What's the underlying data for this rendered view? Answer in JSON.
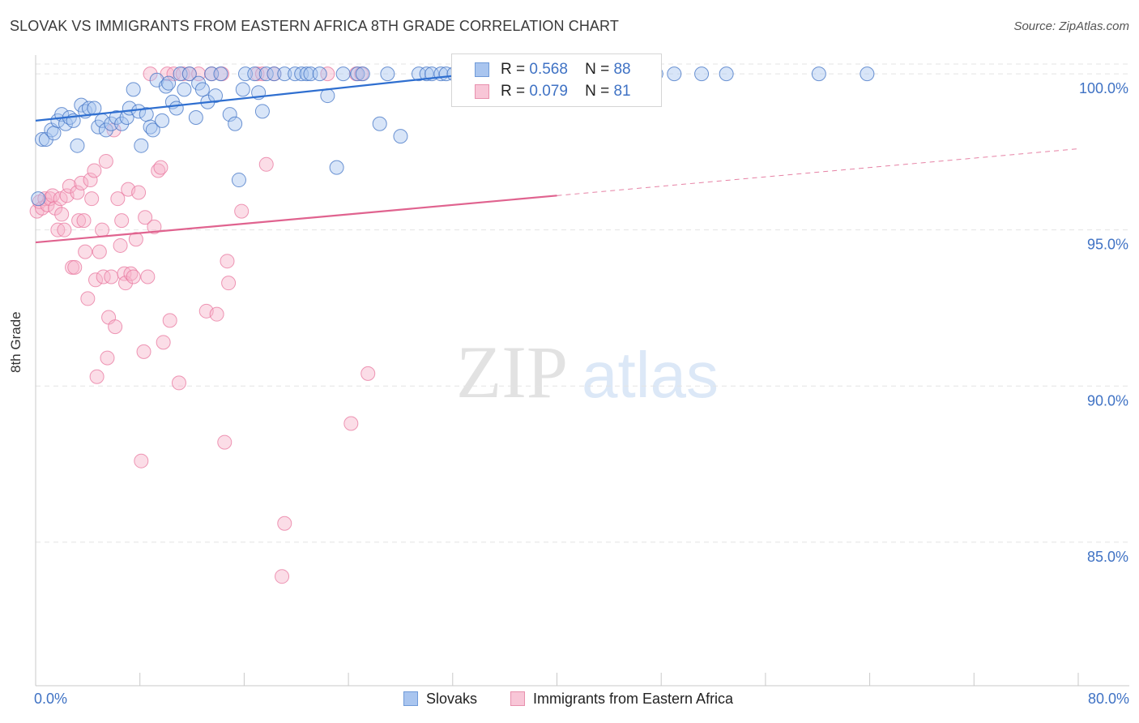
{
  "title": "SLOVAK VS IMMIGRANTS FROM EASTERN AFRICA 8TH GRADE CORRELATION CHART",
  "source": "Source: ZipAtlas.com",
  "watermark": {
    "zip": "ZIP",
    "atlas": "atlas"
  },
  "colors": {
    "blue": "#3f72c4",
    "blue_fill": "#a9c5ef",
    "blue_line": "#2f6fd0",
    "pink": "#e8769d",
    "pink_fill": "#f6b3c9",
    "pink_line": "#e0638f"
  },
  "legend": {
    "r_label": "R =",
    "n_label": "N =",
    "rows": [
      {
        "r": "0.568",
        "n": "88"
      },
      {
        "r": "0.079",
        "n": "81"
      }
    ]
  },
  "bottom_legend": {
    "series1": "Slovaks",
    "series2": "Immigrants from Eastern Africa"
  },
  "chart_data": {
    "type": "scatter",
    "title": "SLOVAK VS IMMIGRANTS FROM EASTERN AFRICA 8TH GRADE CORRELATION CHART",
    "xlabel": "",
    "ylabel": "8th Grade",
    "xlim": [
      0,
      80
    ],
    "ylim": [
      80.4,
      100.6
    ],
    "x_tick_labels": [
      "0.0%",
      "80.0%"
    ],
    "y_ticks": [
      85,
      90,
      95,
      100
    ],
    "y_tick_labels": [
      "85.0%",
      "90.0%",
      "95.0%",
      "100.0%"
    ],
    "grid": true,
    "legend_placement": "top-center",
    "series": [
      {
        "name": "Slovaks",
        "trend": {
          "x": [
            0,
            33.5
          ],
          "y": [
            98.5,
            100.0
          ]
        },
        "points": [
          [
            0.2,
            96.0
          ],
          [
            0.5,
            97.9
          ],
          [
            0.8,
            97.9
          ],
          [
            1.2,
            98.2
          ],
          [
            1.4,
            98.1
          ],
          [
            1.7,
            98.5
          ],
          [
            2.0,
            98.7
          ],
          [
            2.3,
            98.4
          ],
          [
            2.6,
            98.6
          ],
          [
            2.9,
            98.5
          ],
          [
            3.2,
            97.7
          ],
          [
            3.5,
            99.0
          ],
          [
            3.8,
            98.8
          ],
          [
            4.1,
            98.9
          ],
          [
            4.5,
            98.9
          ],
          [
            4.8,
            98.3
          ],
          [
            5.1,
            98.5
          ],
          [
            5.4,
            98.2
          ],
          [
            5.8,
            98.4
          ],
          [
            6.2,
            98.6
          ],
          [
            6.6,
            98.4
          ],
          [
            7.0,
            98.6
          ],
          [
            7.2,
            98.9
          ],
          [
            7.5,
            99.5
          ],
          [
            7.9,
            98.8
          ],
          [
            8.1,
            97.7
          ],
          [
            8.5,
            98.7
          ],
          [
            8.8,
            98.3
          ],
          [
            9.0,
            98.2
          ],
          [
            9.3,
            99.8
          ],
          [
            9.7,
            98.5
          ],
          [
            10.0,
            99.6
          ],
          [
            10.2,
            99.7
          ],
          [
            10.5,
            99.1
          ],
          [
            10.8,
            98.9
          ],
          [
            11.1,
            100.0
          ],
          [
            11.4,
            99.5
          ],
          [
            11.8,
            100.0
          ],
          [
            12.3,
            98.6
          ],
          [
            12.5,
            99.7
          ],
          [
            12.8,
            99.5
          ],
          [
            13.2,
            99.1
          ],
          [
            13.5,
            100.0
          ],
          [
            13.8,
            99.3
          ],
          [
            14.2,
            100.0
          ],
          [
            14.9,
            98.7
          ],
          [
            15.3,
            98.4
          ],
          [
            15.6,
            96.6
          ],
          [
            15.9,
            99.5
          ],
          [
            16.1,
            100.0
          ],
          [
            16.8,
            100.0
          ],
          [
            17.1,
            99.4
          ],
          [
            17.4,
            98.8
          ],
          [
            17.7,
            100.0
          ],
          [
            18.3,
            100.0
          ],
          [
            19.1,
            100.0
          ],
          [
            19.9,
            100.0
          ],
          [
            20.4,
            100.0
          ],
          [
            20.8,
            100.0
          ],
          [
            21.1,
            100.0
          ],
          [
            21.8,
            100.0
          ],
          [
            22.4,
            99.3
          ],
          [
            23.1,
            97.0
          ],
          [
            23.6,
            100.0
          ],
          [
            24.7,
            100.0
          ],
          [
            25.1,
            100.0
          ],
          [
            26.4,
            98.4
          ],
          [
            27.0,
            100.0
          ],
          [
            28.0,
            98.0
          ],
          [
            29.4,
            100.0
          ],
          [
            30.0,
            100.0
          ],
          [
            30.4,
            100.0
          ],
          [
            31.1,
            100.0
          ],
          [
            31.5,
            100.0
          ],
          [
            32.1,
            100.0
          ],
          [
            34.1,
            100.0
          ],
          [
            35.4,
            100.0
          ],
          [
            37.9,
            100.0
          ],
          [
            40.0,
            100.0
          ],
          [
            41.5,
            100.0
          ],
          [
            42.3,
            100.0
          ],
          [
            46.5,
            100.0
          ],
          [
            47.6,
            100.0
          ],
          [
            49.0,
            100.0
          ],
          [
            51.1,
            100.0
          ],
          [
            53.0,
            100.0
          ],
          [
            60.1,
            100.0
          ],
          [
            63.8,
            100.0
          ]
        ]
      },
      {
        "name": "Immigrants from Eastern Africa",
        "trend": {
          "x": [
            0,
            40
          ],
          "y": [
            94.6,
            96.1
          ]
        },
        "trend_extension": {
          "x": [
            40,
            80
          ],
          "y": [
            96.1,
            97.6
          ]
        },
        "points": [
          [
            0.1,
            95.6
          ],
          [
            0.3,
            95.9
          ],
          [
            0.5,
            95.7
          ],
          [
            0.7,
            96.0
          ],
          [
            0.9,
            95.8
          ],
          [
            1.1,
            96.0
          ],
          [
            1.3,
            96.1
          ],
          [
            1.5,
            95.7
          ],
          [
            1.7,
            95.0
          ],
          [
            1.9,
            96.0
          ],
          [
            2.0,
            95.5
          ],
          [
            2.2,
            95.0
          ],
          [
            2.4,
            96.1
          ],
          [
            2.6,
            96.4
          ],
          [
            2.8,
            93.8
          ],
          [
            3.0,
            93.8
          ],
          [
            3.2,
            96.2
          ],
          [
            3.3,
            95.3
          ],
          [
            3.5,
            96.5
          ],
          [
            3.7,
            95.3
          ],
          [
            3.8,
            94.3
          ],
          [
            4.0,
            92.8
          ],
          [
            4.2,
            96.6
          ],
          [
            4.3,
            96.0
          ],
          [
            4.5,
            96.9
          ],
          [
            4.6,
            93.4
          ],
          [
            4.7,
            90.3
          ],
          [
            4.9,
            94.3
          ],
          [
            5.1,
            95.0
          ],
          [
            5.2,
            93.5
          ],
          [
            5.4,
            97.2
          ],
          [
            5.5,
            90.9
          ],
          [
            5.6,
            92.2
          ],
          [
            5.8,
            93.5
          ],
          [
            6.0,
            98.2
          ],
          [
            6.1,
            91.9
          ],
          [
            6.3,
            96.0
          ],
          [
            6.5,
            94.5
          ],
          [
            6.6,
            95.3
          ],
          [
            6.8,
            93.6
          ],
          [
            6.9,
            93.3
          ],
          [
            7.1,
            96.3
          ],
          [
            7.3,
            93.6
          ],
          [
            7.5,
            93.5
          ],
          [
            7.7,
            94.7
          ],
          [
            7.9,
            96.2
          ],
          [
            8.1,
            87.6
          ],
          [
            8.3,
            91.1
          ],
          [
            8.4,
            95.4
          ],
          [
            8.6,
            93.5
          ],
          [
            8.8,
            100.0
          ],
          [
            9.1,
            95.1
          ],
          [
            9.4,
            96.9
          ],
          [
            9.6,
            97.0
          ],
          [
            9.8,
            91.4
          ],
          [
            10.1,
            100.0
          ],
          [
            10.3,
            92.1
          ],
          [
            10.6,
            100.0
          ],
          [
            11.0,
            90.1
          ],
          [
            11.3,
            100.0
          ],
          [
            11.8,
            100.0
          ],
          [
            12.5,
            100.0
          ],
          [
            13.1,
            92.4
          ],
          [
            13.5,
            100.0
          ],
          [
            13.9,
            92.3
          ],
          [
            14.3,
            100.0
          ],
          [
            14.5,
            88.2
          ],
          [
            14.7,
            94.0
          ],
          [
            14.8,
            93.3
          ],
          [
            15.8,
            95.6
          ],
          [
            17.0,
            100.0
          ],
          [
            17.4,
            100.0
          ],
          [
            17.7,
            97.1
          ],
          [
            18.3,
            100.0
          ],
          [
            18.9,
            83.9
          ],
          [
            19.1,
            85.6
          ],
          [
            22.4,
            100.0
          ],
          [
            24.2,
            88.8
          ],
          [
            24.6,
            100.0
          ],
          [
            25.0,
            100.0
          ],
          [
            25.5,
            90.4
          ]
        ]
      }
    ]
  }
}
